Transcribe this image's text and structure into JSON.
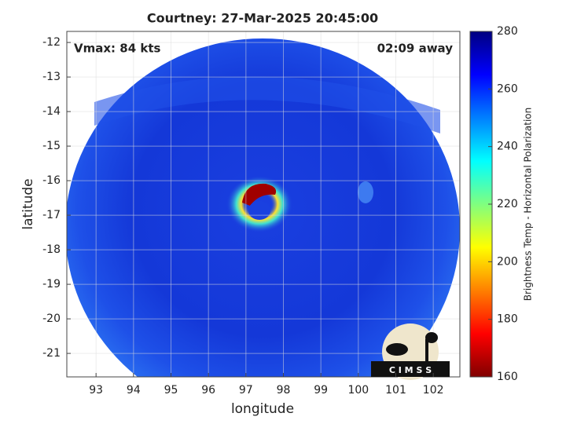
{
  "chart_data": {
    "type": "map",
    "title": "Courtney: 27-Mar-2025 20:45:00",
    "xlabel": "longitude",
    "ylabel": "latitude",
    "xlim": [
      92.22,
      102.71
    ],
    "ylim": [
      -21.68,
      -11.68
    ],
    "xticks": [
      93,
      94,
      95,
      96,
      97,
      98,
      99,
      100,
      101,
      102
    ],
    "yticks": [
      -21,
      -20,
      -19,
      -18,
      -17,
      -16,
      -15,
      -14,
      -13,
      -12
    ],
    "grid": true,
    "annotations": [
      "Vmax: 84 kts",
      "02:09 away"
    ],
    "logo": "C I M S S",
    "colorbar": {
      "label": "Brightness Temp - Horizontal Polarization",
      "colormap": "jet",
      "lim": [
        160,
        280
      ],
      "ticks": [
        160,
        180,
        200,
        220,
        240,
        260,
        280
      ]
    }
  }
}
